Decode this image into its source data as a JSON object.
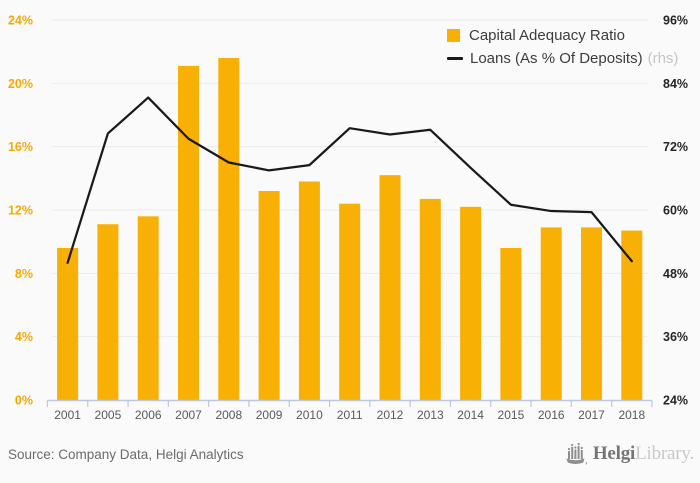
{
  "legend": {
    "bar_label": "Capital Adequacy Ratio",
    "line_label": "Loans (As % Of Deposits)",
    "line_suffix": "(rhs)"
  },
  "footer": {
    "source": "Source: Company Data, Helgi Analytics",
    "logo_name": "Helgi",
    "logo_suffix": "Library."
  },
  "chart_data": {
    "type": "bar+line",
    "title": "",
    "categories": [
      "2001",
      "2005",
      "2006",
      "2007",
      "2008",
      "2009",
      "2010",
      "2011",
      "2012",
      "2013",
      "2014",
      "2015",
      "2016",
      "2017",
      "2018"
    ],
    "series": [
      {
        "name": "Capital Adequacy Ratio",
        "type": "bar",
        "axis": "left",
        "values": [
          9.6,
          11.1,
          11.6,
          21.1,
          21.6,
          13.2,
          13.8,
          12.4,
          14.2,
          12.7,
          12.2,
          9.6,
          10.9,
          10.9,
          10.7
        ]
      },
      {
        "name": "Loans (As % Of Deposits)",
        "type": "line",
        "axis": "right",
        "values": [
          50,
          74.5,
          81.3,
          73.5,
          69,
          67.5,
          68.5,
          75.5,
          74.3,
          75.2,
          68,
          61,
          59.8,
          59.6,
          50.3
        ]
      }
    ],
    "left_axis": {
      "tick_values": [
        24,
        20,
        16,
        12,
        8,
        4,
        0
      ],
      "unit": "%",
      "min": 0,
      "max": 24
    },
    "right_axis": {
      "tick_values": [
        96,
        84,
        72,
        60,
        48,
        36,
        24
      ],
      "unit": "%",
      "min": 24,
      "max": 96
    },
    "grid": true,
    "legend_position": "top-right",
    "colors": {
      "bar": "#f9b005",
      "line": "#1a1a1a",
      "left_axis_label": "#f9a800",
      "right_axis_label": "#262626",
      "x_axis_label": "#58595b",
      "grid": "#ebebeb",
      "baseline": "#bdc7dd",
      "background": "#fafafa"
    }
  }
}
